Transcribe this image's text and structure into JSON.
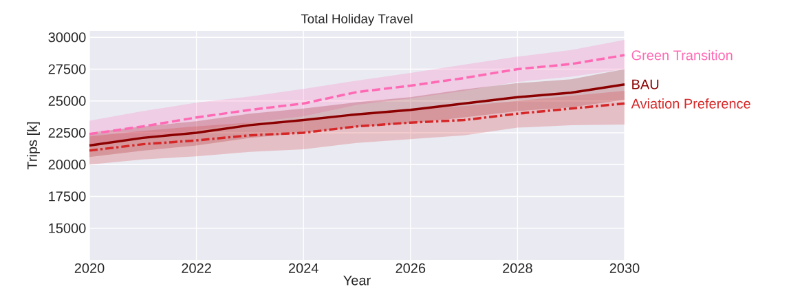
{
  "chart_data": {
    "type": "line",
    "title": "Total Holiday Travel",
    "xlabel": "Year",
    "ylabel": "Trips [k]",
    "x": [
      2020,
      2021,
      2022,
      2023,
      2024,
      2025,
      2026,
      2027,
      2028,
      2029,
      2030
    ],
    "series": [
      {
        "name": "Green Transition",
        "color": "#ff69b4",
        "line_style": "dashed",
        "values": [
          22400,
          23000,
          23700,
          24300,
          24800,
          25700,
          26200,
          26800,
          27500,
          27900,
          28600
        ],
        "lower": [
          21400,
          22000,
          22700,
          23300,
          23800,
          24700,
          25200,
          25800,
          26500,
          26900,
          27500
        ],
        "upper": [
          23450,
          24200,
          24860,
          25350,
          25940,
          26600,
          27200,
          27850,
          28480,
          29000,
          29800
        ]
      },
      {
        "name": "BAU",
        "color": "#8b0000",
        "line_style": "solid",
        "values": [
          21500,
          22100,
          22500,
          23100,
          23500,
          23950,
          24300,
          24800,
          25300,
          25650,
          26300
        ],
        "lower": [
          20600,
          21100,
          21500,
          22100,
          22500,
          22950,
          23250,
          23700,
          24200,
          24500,
          25100
        ],
        "upper": [
          22500,
          23000,
          23400,
          24000,
          24400,
          24900,
          25300,
          25900,
          26400,
          26700,
          27500
        ]
      },
      {
        "name": "Aviation Preference",
        "color": "#d62728",
        "line_style": "dashdot",
        "values": [
          21100,
          21600,
          21900,
          22300,
          22500,
          23000,
          23300,
          23500,
          24000,
          24400,
          24800
        ],
        "lower": [
          20000,
          20400,
          20650,
          21000,
          21200,
          21700,
          22000,
          22300,
          22900,
          23100,
          23150
        ],
        "upper": [
          22200,
          22650,
          23000,
          23300,
          23500,
          24000,
          24400,
          24600,
          25000,
          25400,
          25800
        ]
      }
    ],
    "xlim": [
      2020,
      2030
    ],
    "ylim": [
      12500,
      30500
    ],
    "xticks": [
      2020,
      2022,
      2024,
      2026,
      2028,
      2030
    ],
    "yticks": [
      15000,
      17500,
      20000,
      22500,
      25000,
      27500,
      30000
    ],
    "grid": true
  }
}
